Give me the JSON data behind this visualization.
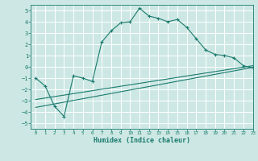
{
  "bg_color": "#cde8e4",
  "grid_color": "#ffffff",
  "line_color": "#1a7a6e",
  "xlabel": "Humidex (Indice chaleur)",
  "xlim": [
    -0.5,
    23
  ],
  "ylim": [
    -5.5,
    5.5
  ],
  "yticks": [
    -5,
    -4,
    -3,
    -2,
    -1,
    0,
    1,
    2,
    3,
    4,
    5
  ],
  "xticks": [
    0,
    1,
    2,
    3,
    4,
    5,
    6,
    7,
    8,
    9,
    10,
    11,
    12,
    13,
    14,
    15,
    16,
    17,
    18,
    19,
    20,
    21,
    22,
    23
  ],
  "line1_x": [
    0,
    1,
    2,
    3,
    4,
    5,
    6,
    7,
    8,
    9,
    10,
    11,
    12,
    13,
    14,
    15,
    16,
    17,
    18,
    19,
    20,
    21,
    22,
    23
  ],
  "line1_y": [
    -1.0,
    -1.7,
    -3.5,
    -4.4,
    -0.8,
    -1.0,
    -1.3,
    2.2,
    3.2,
    3.9,
    4.0,
    5.2,
    4.5,
    4.3,
    4.0,
    4.2,
    3.5,
    2.5,
    1.5,
    1.1,
    1.0,
    0.8,
    0.1,
    -0.1
  ],
  "line2_x": [
    0,
    23
  ],
  "line2_y": [
    -3.6,
    -0.05
  ],
  "line3_x": [
    0,
    23
  ],
  "line3_y": [
    -2.9,
    0.1
  ]
}
